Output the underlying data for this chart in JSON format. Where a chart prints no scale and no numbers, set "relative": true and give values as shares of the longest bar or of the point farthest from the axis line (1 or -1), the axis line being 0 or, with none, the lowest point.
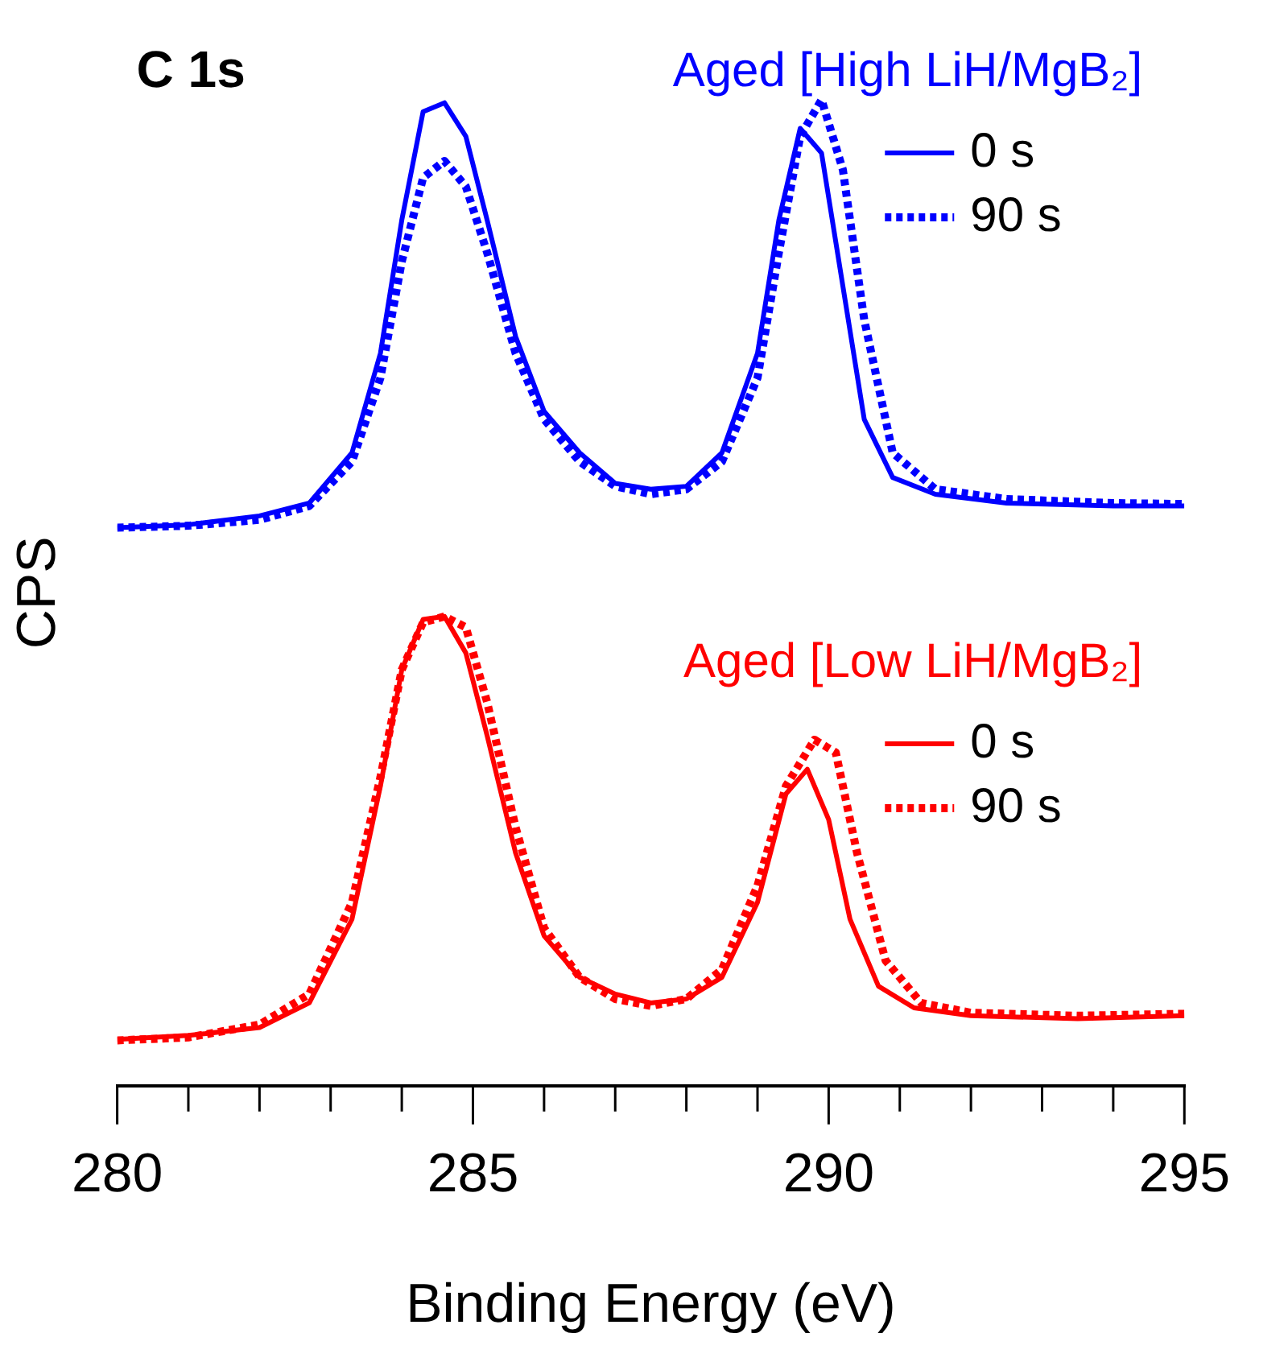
{
  "chart_data": {
    "type": "line",
    "title": "C 1s",
    "xlabel": "Binding Energy (eV)",
    "ylabel": "CPS",
    "relative": true,
    "grid": false,
    "legend": "top right",
    "tick_labels": "x",
    "xlim": [
      280,
      295
    ],
    "xticks": [
      280,
      {
        "value": 281,
        "label": null
      },
      {
        "value": 282,
        "label": null
      },
      {
        "value": 283,
        "label": null
      },
      {
        "value": 284,
        "label": null
      },
      285,
      {
        "value": 286,
        "label": null
      },
      {
        "value": 287,
        "label": null
      },
      {
        "value": 288,
        "label": null
      },
      {
        "value": 289,
        "label": null
      },
      290,
      {
        "value": 291,
        "label": null
      },
      {
        "value": 292,
        "label": null
      },
      {
        "value": 293,
        "label": null
      },
      {
        "value": 294,
        "label": null
      },
      295
    ],
    "annotations": [
      "Aged [High LiH/MgB₂]",
      "Aged [Low LiH/MgB₂]"
    ],
    "series": [
      {
        "name": "0 s",
        "color": "#0000ff",
        "line_style": "solid",
        "x": [
          280,
          281,
          282,
          282.7,
          283.3,
          283.7,
          284,
          284.3,
          284.6,
          284.9,
          285.2,
          285.6,
          286,
          286.5,
          287,
          287.5,
          288,
          288.5,
          289,
          289.3,
          289.6,
          289.9,
          290.2,
          290.5,
          290.9,
          291.5,
          292.5,
          294,
          295
        ],
        "values": [
          0.566,
          0.569,
          0.578,
          0.591,
          0.642,
          0.743,
          0.878,
          0.988,
          0.997,
          0.963,
          0.878,
          0.76,
          0.684,
          0.642,
          0.611,
          0.605,
          0.608,
          0.642,
          0.743,
          0.878,
          0.971,
          0.946,
          0.811,
          0.676,
          0.617,
          0.6,
          0.591,
          0.588,
          0.588
        ]
      },
      {
        "name": "90 s",
        "color": "#0000ff",
        "line_style": "dotted",
        "x": [
          280,
          281,
          282,
          282.7,
          283.3,
          283.7,
          284,
          284.3,
          284.6,
          284.9,
          285.2,
          285.6,
          286,
          286.5,
          287,
          287.5,
          288,
          288.5,
          289,
          289.3,
          289.6,
          289.9,
          290.2,
          290.5,
          290.9,
          291.5,
          292.5,
          294,
          295
        ],
        "values": [
          0.566,
          0.568,
          0.574,
          0.588,
          0.633,
          0.718,
          0.836,
          0.921,
          0.938,
          0.912,
          0.845,
          0.743,
          0.676,
          0.633,
          0.608,
          0.6,
          0.605,
          0.633,
          0.718,
          0.845,
          0.963,
          1,
          0.929,
          0.777,
          0.642,
          0.605,
          0.595,
          0.591,
          0.59
        ]
      },
      {
        "name": "0 s",
        "color": "#ff0000",
        "line_style": "solid",
        "x": [
          280,
          281,
          282,
          282.7,
          283.3,
          283.7,
          284,
          284.3,
          284.6,
          284.9,
          285.2,
          285.6,
          286,
          286.5,
          287,
          287.5,
          288,
          288.5,
          289,
          289.4,
          289.7,
          290,
          290.3,
          290.7,
          291.2,
          292,
          293.5,
          295
        ],
        "values": [
          0.047,
          0.051,
          0.059,
          0.084,
          0.169,
          0.304,
          0.422,
          0.473,
          0.476,
          0.439,
          0.355,
          0.236,
          0.152,
          0.11,
          0.093,
          0.084,
          0.088,
          0.11,
          0.186,
          0.296,
          0.321,
          0.27,
          0.169,
          0.101,
          0.079,
          0.071,
          0.068,
          0.071
        ]
      },
      {
        "name": "90 s",
        "color": "#ff0000",
        "line_style": "dotted",
        "x": [
          280,
          281,
          282,
          282.7,
          283.3,
          283.7,
          284,
          284.3,
          284.6,
          284.9,
          285.2,
          285.6,
          286,
          286.5,
          287,
          287.5,
          288,
          288.5,
          289,
          289.4,
          289.8,
          290.1,
          290.4,
          290.8,
          291.3,
          292,
          293.5,
          295
        ],
        "values": [
          0.046,
          0.049,
          0.062,
          0.093,
          0.186,
          0.313,
          0.422,
          0.47,
          0.476,
          0.465,
          0.389,
          0.262,
          0.16,
          0.11,
          0.088,
          0.081,
          0.088,
          0.118,
          0.203,
          0.304,
          0.351,
          0.338,
          0.236,
          0.127,
          0.084,
          0.074,
          0.071,
          0.073
        ]
      }
    ]
  }
}
